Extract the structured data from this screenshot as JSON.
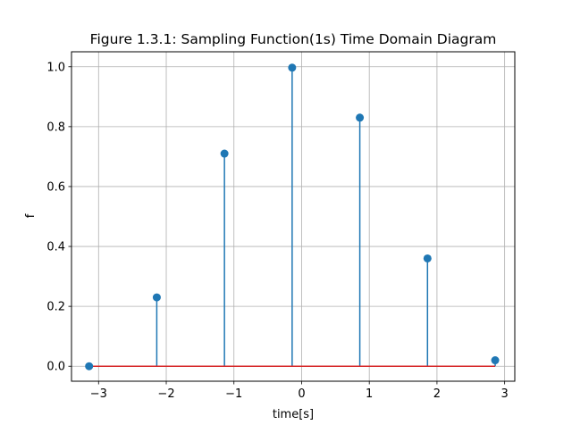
{
  "chart_data": {
    "type": "stem",
    "title": "Figure 1.3.1: Sampling Function(1s) Time Domain Diagram",
    "xlabel": "time[s]",
    "ylabel": "f",
    "xlim": [
      -3.4,
      3.15
    ],
    "ylim": [
      -0.05,
      1.05
    ],
    "xticks": [
      -3,
      -2,
      -1,
      0,
      1,
      2,
      3
    ],
    "xtick_labels": [
      "−3",
      "−2",
      "−1",
      "0",
      "1",
      "2",
      "3"
    ],
    "yticks": [
      0.0,
      0.2,
      0.4,
      0.6,
      0.8,
      1.0
    ],
    "ytick_labels": [
      "0.0",
      "0.2",
      "0.4",
      "0.6",
      "0.8",
      "1.0"
    ],
    "grid": true,
    "x": [
      -3.14,
      -2.14,
      -1.14,
      -0.14,
      0.86,
      1.86,
      2.86
    ],
    "y": [
      0.0,
      0.23,
      0.71,
      0.997,
      0.83,
      0.36,
      0.02
    ],
    "colors": {
      "stem": "#1f77b4",
      "marker": "#1f77b4",
      "baseline": "#d62728",
      "grid": "#b0b0b0"
    }
  }
}
